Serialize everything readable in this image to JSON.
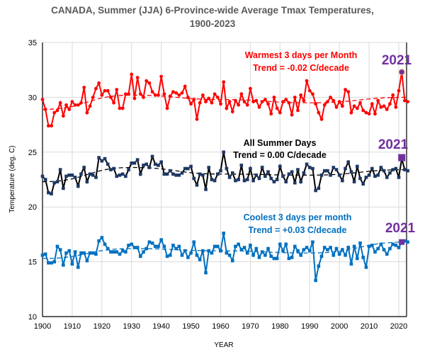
{
  "chart_data": {
    "type": "line",
    "title": "CANADA, Summer (JJA) 6-Province-wide Average Tmax Temperatures,",
    "title_line2": "1900-2023",
    "xlabel": "YEAR",
    "ylabel": "Temperature (deg. C)",
    "xlim": [
      1900,
      2023
    ],
    "ylim": [
      10,
      35
    ],
    "x_ticks": [
      "1900",
      "1910",
      "1920",
      "1930",
      "1940",
      "1950",
      "1960",
      "1970",
      "1980",
      "1990",
      "2000",
      "2010",
      "2020"
    ],
    "y_ticks": [
      "10",
      "15",
      "20",
      "25",
      "30",
      "35"
    ],
    "grid": true,
    "x_start": 1900,
    "series": [
      {
        "name": "Warmest 3 days per Month",
        "trend_label": "Trend = -0.02 C/decade",
        "color": "#ff0000",
        "marker": "circle",
        "values": [
          29.8,
          28.9,
          27.4,
          27.4,
          28.6,
          28.8,
          29.5,
          28.3,
          29.3,
          28.9,
          29.6,
          29.3,
          29.3,
          29.5,
          30.9,
          28.6,
          29.2,
          30.0,
          30.8,
          31.3,
          30.2,
          30.6,
          30.6,
          30.0,
          29.5,
          30.7,
          29.0,
          29.0,
          30.3,
          30.3,
          32.1,
          29.9,
          31.8,
          30.3,
          30.0,
          31.5,
          31.3,
          30.5,
          30.2,
          30.2,
          31.9,
          30.3,
          29.0,
          30.1,
          30.5,
          30.4,
          30.2,
          30.4,
          31.0,
          30.0,
          29.4,
          29.8,
          28.0,
          29.5,
          30.2,
          29.6,
          29.9,
          29.5,
          30.3,
          30.0,
          29.4,
          31.4,
          29.0,
          29.6,
          28.7,
          29.7,
          29.3,
          30.3,
          29.6,
          29.3,
          30.8,
          29.6,
          29.7,
          29.1,
          29.6,
          29.8,
          29.4,
          28.5,
          30.0,
          29.0,
          28.6,
          29.6,
          29.8,
          29.5,
          28.4,
          30.0,
          28.8,
          30.2,
          29.7,
          31.5,
          30.6,
          30.3,
          29.4,
          28.6,
          28.0,
          29.3,
          29.6,
          30.0,
          29.7,
          29.1,
          29.6,
          29.2,
          30.7,
          30.5,
          28.6,
          29.2,
          29.0,
          29.5,
          28.8,
          28.6,
          28.5,
          29.4,
          28.5,
          29.7,
          29.1,
          29.2,
          28.9,
          29.4,
          30.2,
          29.1,
          30.6,
          32.3,
          29.7,
          29.6
        ],
        "trend_curve": [
          [
            1900,
            28.9
          ],
          [
            1930,
            30.2
          ],
          [
            1960,
            29.8
          ],
          [
            1990,
            29.5
          ],
          [
            2023,
            30.0
          ]
        ]
      },
      {
        "name": "All Summer Days",
        "trend_label": "Trend = 0.00 C/decade",
        "color": "#000000",
        "marker_color": "#1f3864",
        "marker": "square",
        "values": [
          22.8,
          22.5,
          21.3,
          21.2,
          22.2,
          22.3,
          23.4,
          21.7,
          22.8,
          22.9,
          22.9,
          22.7,
          21.9,
          23.0,
          23.6,
          22.3,
          23.0,
          22.9,
          22.7,
          24.5,
          24.2,
          24.4,
          23.9,
          23.4,
          23.5,
          22.8,
          22.9,
          23.0,
          22.8,
          23.4,
          24.0,
          24.0,
          24.3,
          23.0,
          23.8,
          23.9,
          23.6,
          24.6,
          23.9,
          23.8,
          24.1,
          23.0,
          23.0,
          23.3,
          23.0,
          22.9,
          22.9,
          23.1,
          23.5,
          23.5,
          23.7,
          22.6,
          22.0,
          23.0,
          22.9,
          21.6,
          23.6,
          22.5,
          22.4,
          23.0,
          23.3,
          25.0,
          23.5,
          22.7,
          23.1,
          22.4,
          22.5,
          23.8,
          22.4,
          22.5,
          23.5,
          22.4,
          22.9,
          22.6,
          23.6,
          22.8,
          23.2,
          22.6,
          22.3,
          22.5,
          23.7,
          22.8,
          22.3,
          23.0,
          23.2,
          22.2,
          23.4,
          22.3,
          23.1,
          23.9,
          23.6,
          23.5,
          21.5,
          21.7,
          22.9,
          23.3,
          23.3,
          22.9,
          23.6,
          23.4,
          22.9,
          22.4,
          23.5,
          24.1,
          23.2,
          22.3,
          23.7,
          22.6,
          22.1,
          22.7,
          22.9,
          23.5,
          22.8,
          22.9,
          23.6,
          23.3,
          22.7,
          23.1,
          23.4,
          23.5,
          22.7,
          24.4,
          23.4,
          23.3
        ],
        "trend_curve": [
          [
            1900,
            22.3
          ],
          [
            1930,
            23.6
          ],
          [
            1960,
            23.0
          ],
          [
            1990,
            22.9
          ],
          [
            2023,
            23.4
          ]
        ]
      },
      {
        "name": "Coolest 3 days per month",
        "trend_label": "Trend = +0.03 C/decade",
        "color": "#0070c0",
        "marker": "square",
        "values": [
          15.6,
          15.7,
          14.9,
          14.9,
          15.0,
          16.4,
          16.1,
          14.7,
          15.8,
          16.0,
          14.8,
          15.9,
          14.5,
          15.8,
          15.8,
          15.1,
          15.8,
          15.8,
          15.7,
          16.9,
          17.2,
          16.6,
          16.2,
          15.9,
          15.9,
          15.9,
          15.7,
          16.0,
          15.9,
          16.5,
          16.6,
          16.3,
          16.3,
          15.5,
          15.9,
          16.2,
          16.8,
          16.7,
          16.4,
          16.4,
          17.0,
          16.4,
          15.5,
          15.6,
          16.5,
          16.2,
          16.4,
          15.6,
          16.0,
          15.4,
          15.8,
          16.8,
          15.6,
          15.2,
          16.0,
          14.0,
          16.0,
          15.8,
          16.4,
          16.4,
          16.0,
          17.6,
          15.8,
          15.6,
          15.1,
          16.4,
          16.6,
          16.1,
          16.3,
          15.8,
          16.5,
          15.6,
          16.2,
          15.4,
          15.9,
          15.6,
          16.2,
          15.5,
          15.3,
          15.3,
          16.6,
          16.0,
          16.6,
          15.3,
          15.4,
          16.4,
          16.0,
          15.6,
          16.1,
          16.3,
          16.0,
          16.8,
          13.3,
          14.6,
          15.5,
          16.3,
          16.1,
          16.3,
          15.6,
          16.2,
          15.7,
          16.1,
          15.6,
          16.3,
          14.8,
          16.4,
          15.3,
          16.7,
          15.4,
          14.5,
          16.4,
          16.5,
          15.9,
          16.2,
          16.6,
          16.1,
          15.7,
          16.2,
          16.6,
          16.5,
          16.3,
          16.8,
          16.9,
          16.8
        ],
        "trend_curve": [
          [
            1900,
            15.3
          ],
          [
            1930,
            16.2
          ],
          [
            1960,
            16.0
          ],
          [
            1990,
            15.8
          ],
          [
            2023,
            16.8
          ]
        ]
      }
    ],
    "highlight": {
      "year": 2021,
      "label": "2021",
      "color": "#7030a0"
    }
  }
}
